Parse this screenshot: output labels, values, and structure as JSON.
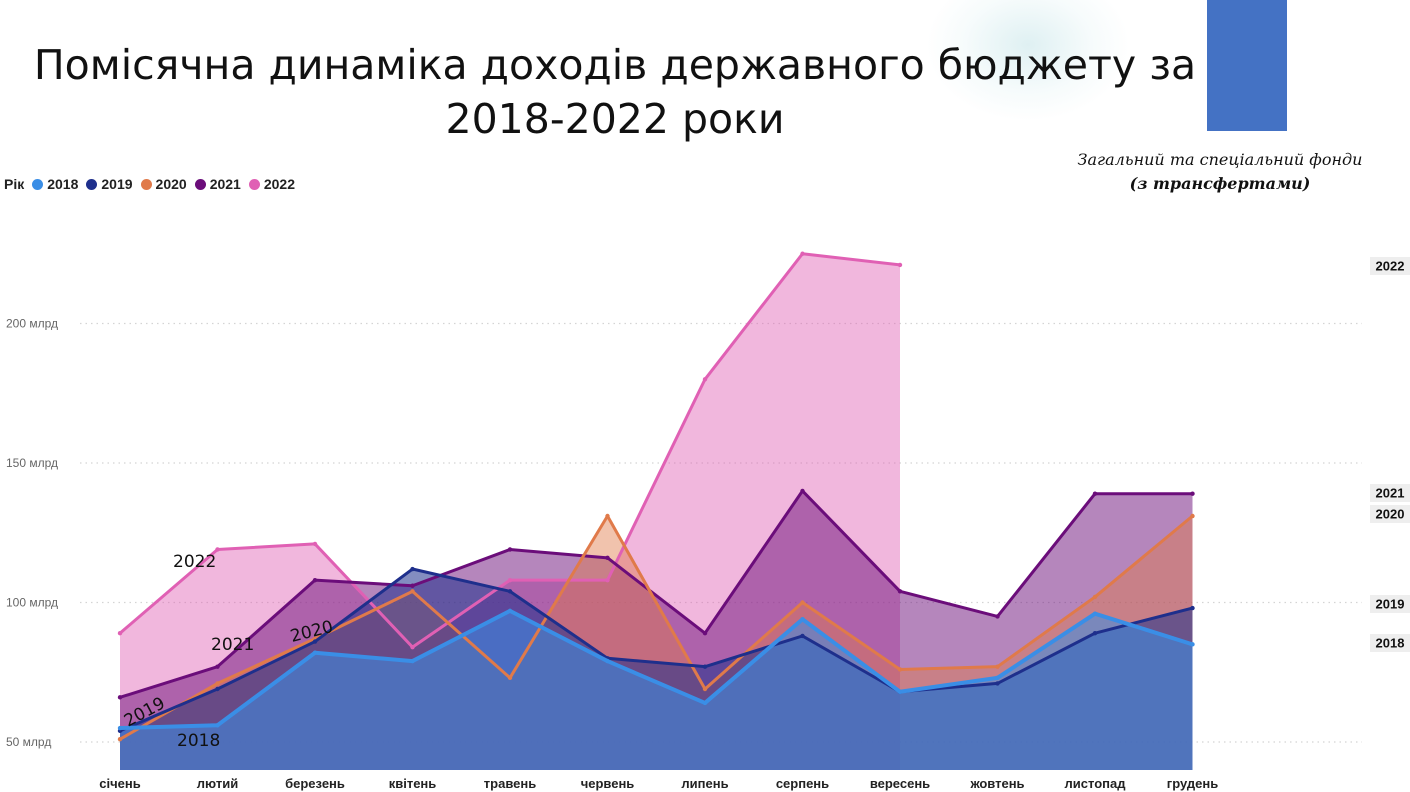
{
  "title_line1": "Помісячна динаміка доходів  державного бюджету за",
  "title_line2": "2018-2022 роки",
  "fund_note_line1": "Загальний та спеціальний фонди",
  "fund_note_line2": "(з трансфертами)",
  "colors": {
    "blue_rect": "#4472c4"
  },
  "chart_data": {
    "type": "area",
    "legend_title": "Рік",
    "legend_position": "top-left",
    "grid": true,
    "categories": [
      "січень",
      "лютий",
      "березень",
      "квітень",
      "травень",
      "червень",
      "липень",
      "серпень",
      "вересень",
      "жовтень",
      "листопад",
      "грудень"
    ],
    "y_ticks": [
      {
        "value": 50,
        "label": "50 млрд"
      },
      {
        "value": 100,
        "label": "100 млрд"
      },
      {
        "value": 150,
        "label": "150 млрд"
      },
      {
        "value": 200,
        "label": "200 млрд"
      }
    ],
    "ylim": [
      40,
      240
    ],
    "series": [
      {
        "name": "2018",
        "color": "#3a8ee6",
        "values": [
          55,
          56,
          82,
          79,
          97,
          79,
          64,
          94,
          68,
          73,
          96,
          85
        ],
        "end_label": "2018",
        "inline_label": "2018"
      },
      {
        "name": "2019",
        "color": "#1e2f8c",
        "values": [
          54,
          69,
          86,
          112,
          104,
          80,
          77,
          88,
          68,
          71,
          89,
          98
        ],
        "end_label": "2019",
        "inline_label": "2019"
      },
      {
        "name": "2020",
        "color": "#e07a4a",
        "values": [
          51,
          71,
          87,
          104,
          73,
          131,
          69,
          100,
          76,
          77,
          102,
          131
        ],
        "end_label": "2020",
        "inline_label": "2020"
      },
      {
        "name": "2021",
        "color": "#6b0d7a",
        "values": [
          66,
          77,
          108,
          106,
          119,
          116,
          89,
          140,
          104,
          95,
          139,
          139
        ],
        "end_label": "2021",
        "inline_label": "2021"
      },
      {
        "name": "2022",
        "color": "#e060b4",
        "values": [
          89,
          119,
          121,
          84,
          108,
          108,
          180,
          225,
          221,
          null,
          null,
          null
        ],
        "end_label": "2022",
        "inline_label": "2022"
      }
    ]
  }
}
